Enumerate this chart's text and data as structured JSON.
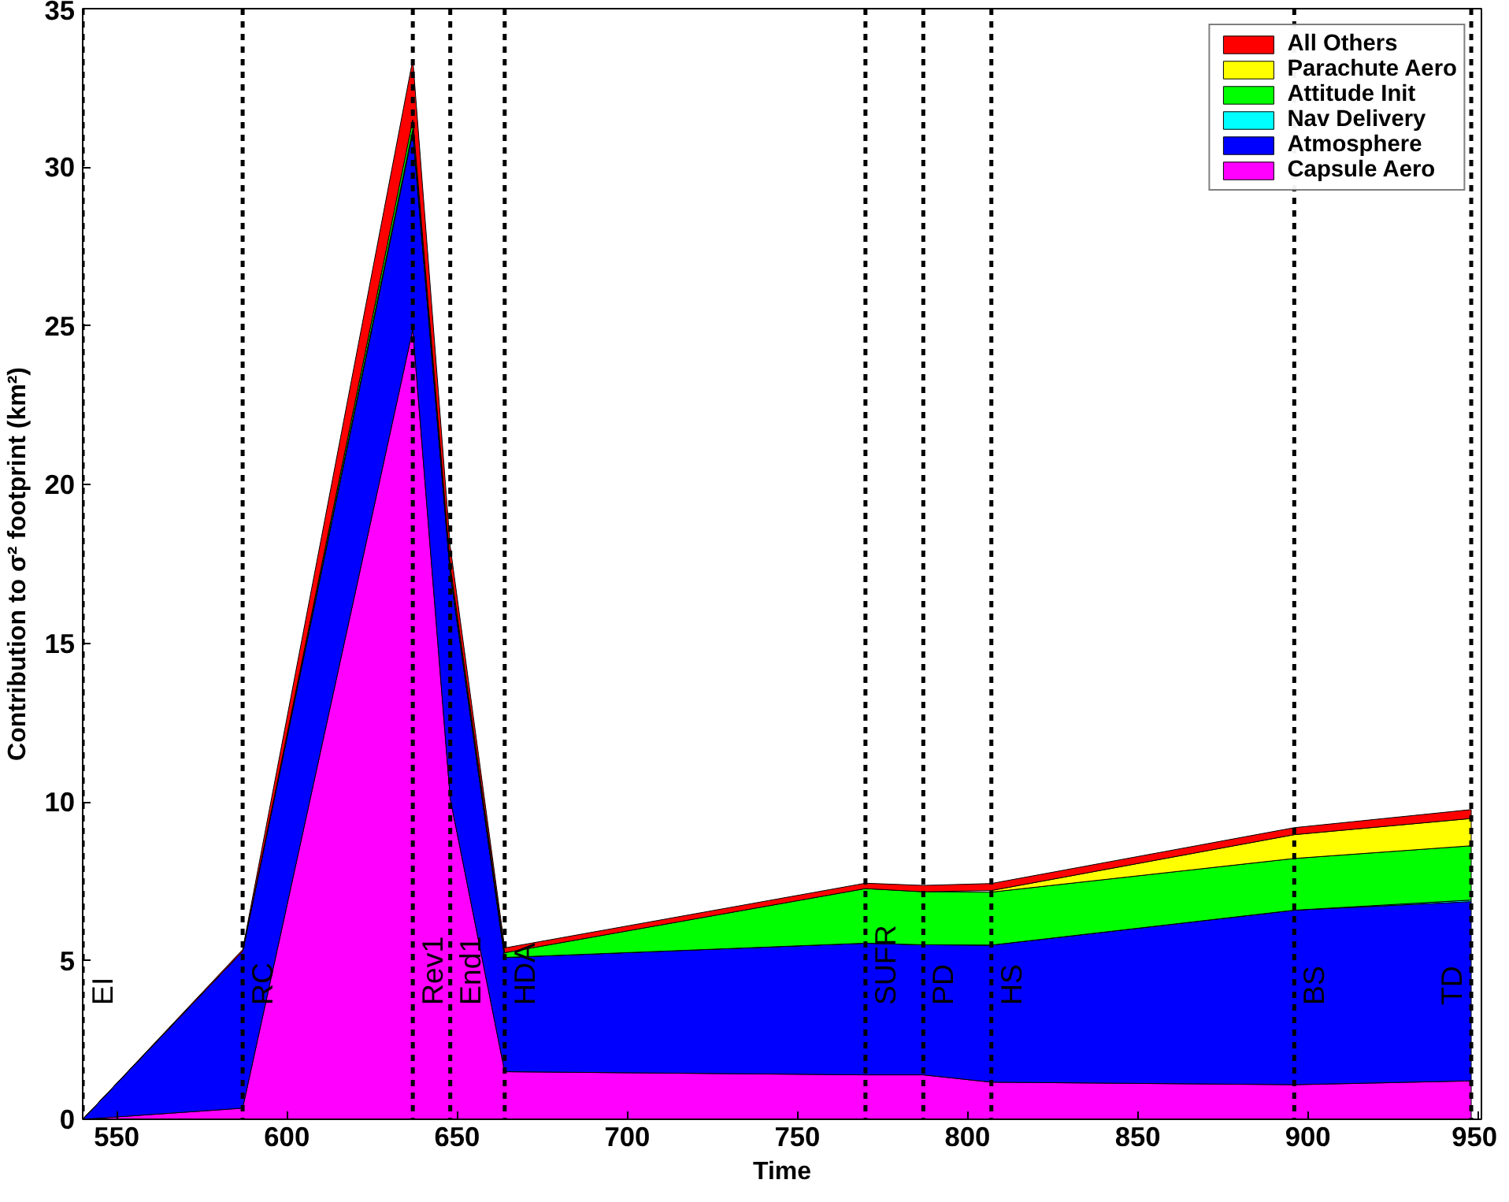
{
  "chart_data": {
    "type": "area",
    "stacked": true,
    "xlabel": "Time",
    "ylabel": "Contribution to σ² footprint (km²)",
    "x": [
      540,
      587,
      637,
      648,
      664,
      770,
      787,
      807,
      896,
      948
    ],
    "series": [
      {
        "name": "Capsule Aero",
        "color": "#ff00ff",
        "values": [
          0,
          0.35,
          24.9,
          10.1,
          1.5,
          1.4,
          1.4,
          1.17,
          1.09,
          1.21
        ]
      },
      {
        "name": "Atmosphere",
        "color": "#0000ff",
        "values": [
          0,
          4.95,
          6.2,
          7.1,
          3.6,
          4.15,
          4.1,
          4.32,
          5.5,
          5.65
        ]
      },
      {
        "name": "Nav Delivery",
        "color": "#00ffff",
        "values": [
          0,
          0,
          0.1,
          0.05,
          0,
          0,
          0,
          0,
          0,
          0.05
        ]
      },
      {
        "name": "Attitude Init",
        "color": "#00ff00",
        "values": [
          0,
          0,
          0.3,
          0.2,
          0.15,
          1.72,
          1.67,
          1.67,
          1.63,
          1.71
        ]
      },
      {
        "name": "Parachute Aero",
        "color": "#ffff00",
        "values": [
          null,
          null,
          null,
          null,
          null,
          null,
          null,
          0.05,
          0.75,
          0.86
        ]
      },
      {
        "name": "All Others",
        "color": "#ff0000",
        "values": [
          0,
          0.05,
          1.9,
          0.6,
          0.15,
          0.17,
          0.2,
          0.22,
          0.22,
          0.28
        ]
      }
    ],
    "xlim": [
      540,
      951
    ],
    "ylim": [
      0,
      35
    ],
    "xticks": [
      550,
      600,
      650,
      700,
      750,
      800,
      850,
      900,
      950
    ],
    "yticks": [
      0,
      5,
      10,
      15,
      20,
      25,
      30,
      35
    ],
    "grid": false,
    "legend": "top right",
    "ref_lines": [
      {
        "axis": "x",
        "value": 540,
        "label": "EI",
        "color": "#000000",
        "line_style": "dashed"
      },
      {
        "axis": "x",
        "value": 587,
        "label": "RC",
        "color": "#000000",
        "line_style": "dashed"
      },
      {
        "axis": "x",
        "value": 637,
        "label": "Rev1",
        "color": "#000000",
        "line_style": "dashed"
      },
      {
        "axis": "x",
        "value": 648,
        "label": "End1",
        "color": "#000000",
        "line_style": "dashed"
      },
      {
        "axis": "x",
        "value": 664,
        "label": "HDA",
        "color": "#000000",
        "line_style": "dashed"
      },
      {
        "axis": "x",
        "value": 770,
        "label": "SUFR",
        "color": "#000000",
        "line_style": "dashed"
      },
      {
        "axis": "x",
        "value": 787,
        "label": "PD",
        "color": "#000000",
        "line_style": "dashed"
      },
      {
        "axis": "x",
        "value": 807,
        "label": "HS",
        "color": "#000000",
        "line_style": "dashed"
      },
      {
        "axis": "x",
        "value": 896,
        "label": "BS",
        "color": "#000000",
        "line_style": "dashed"
      },
      {
        "axis": "x",
        "value": 948,
        "label": "TD",
        "color": "#000000",
        "line_style": "dashed"
      }
    ]
  }
}
